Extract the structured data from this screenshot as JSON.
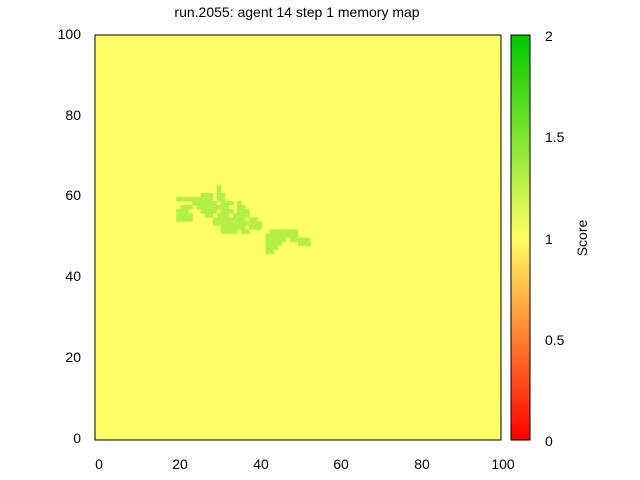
{
  "chart_data": {
    "type": "heatmap",
    "title": "run.2055: agent 14 step 1 memory map",
    "xlim": [
      0,
      100
    ],
    "ylim": [
      0,
      100
    ],
    "x_ticks": [
      "0",
      "20",
      "40",
      "60",
      "80",
      "100"
    ],
    "y_ticks": [
      "0",
      "20",
      "40",
      "60",
      "80",
      "100"
    ],
    "grid": false,
    "background_value": 1,
    "cell_size": 1,
    "cells_value": 1.3,
    "cells": [
      [
        20,
        59
      ],
      [
        21,
        59
      ],
      [
        22,
        59
      ],
      [
        23,
        59
      ],
      [
        24,
        59
      ],
      [
        25,
        59
      ],
      [
        26,
        59
      ],
      [
        27,
        59
      ],
      [
        28,
        59
      ],
      [
        30,
        59
      ],
      [
        31,
        59
      ],
      [
        26,
        60
      ],
      [
        27,
        60
      ],
      [
        28,
        60
      ],
      [
        30,
        60
      ],
      [
        31,
        60
      ],
      [
        30,
        61
      ],
      [
        30,
        62
      ],
      [
        24,
        58
      ],
      [
        25,
        58
      ],
      [
        26,
        58
      ],
      [
        27,
        58
      ],
      [
        28,
        58
      ],
      [
        29,
        58
      ],
      [
        31,
        58
      ],
      [
        32,
        58
      ],
      [
        33,
        58
      ],
      [
        35,
        58
      ],
      [
        21,
        57
      ],
      [
        22,
        57
      ],
      [
        23,
        57
      ],
      [
        25,
        57
      ],
      [
        26,
        57
      ],
      [
        27,
        57
      ],
      [
        28,
        57
      ],
      [
        29,
        57
      ],
      [
        30,
        57
      ],
      [
        31,
        57
      ],
      [
        32,
        57
      ],
      [
        35,
        57
      ],
      [
        36,
        57
      ],
      [
        20,
        56
      ],
      [
        21,
        56
      ],
      [
        22,
        56
      ],
      [
        26,
        56
      ],
      [
        27,
        56
      ],
      [
        28,
        56
      ],
      [
        29,
        56
      ],
      [
        31,
        56
      ],
      [
        32,
        56
      ],
      [
        33,
        56
      ],
      [
        35,
        56
      ],
      [
        36,
        56
      ],
      [
        37,
        56
      ],
      [
        20,
        55
      ],
      [
        21,
        55
      ],
      [
        22,
        55
      ],
      [
        23,
        55
      ],
      [
        27,
        55
      ],
      [
        28,
        55
      ],
      [
        30,
        55
      ],
      [
        31,
        55
      ],
      [
        32,
        55
      ],
      [
        34,
        55
      ],
      [
        35,
        55
      ],
      [
        36,
        55
      ],
      [
        37,
        55
      ],
      [
        20,
        54
      ],
      [
        21,
        54
      ],
      [
        22,
        54
      ],
      [
        23,
        54
      ],
      [
        29,
        54
      ],
      [
        30,
        54
      ],
      [
        31,
        54
      ],
      [
        32,
        54
      ],
      [
        33,
        54
      ],
      [
        34,
        54
      ],
      [
        35,
        54
      ],
      [
        36,
        54
      ],
      [
        38,
        54
      ],
      [
        39,
        54
      ],
      [
        29,
        53
      ],
      [
        30,
        53
      ],
      [
        31,
        53
      ],
      [
        32,
        53
      ],
      [
        33,
        53
      ],
      [
        34,
        53
      ],
      [
        35,
        53
      ],
      [
        36,
        53
      ],
      [
        37,
        53
      ],
      [
        38,
        53
      ],
      [
        39,
        53
      ],
      [
        40,
        53
      ],
      [
        31,
        52
      ],
      [
        32,
        52
      ],
      [
        33,
        52
      ],
      [
        34,
        52
      ],
      [
        35,
        52
      ],
      [
        36,
        52
      ],
      [
        38,
        52
      ],
      [
        39,
        52
      ],
      [
        40,
        52
      ],
      [
        31,
        51
      ],
      [
        32,
        51
      ],
      [
        33,
        51
      ],
      [
        34,
        51
      ],
      [
        36,
        51
      ],
      [
        37,
        51
      ],
      [
        43,
        51
      ],
      [
        44,
        51
      ],
      [
        45,
        51
      ],
      [
        46,
        51
      ],
      [
        47,
        51
      ],
      [
        48,
        51
      ],
      [
        49,
        51
      ],
      [
        42,
        50
      ],
      [
        43,
        50
      ],
      [
        44,
        50
      ],
      [
        45,
        50
      ],
      [
        46,
        50
      ],
      [
        47,
        50
      ],
      [
        48,
        50
      ],
      [
        49,
        50
      ],
      [
        42,
        49
      ],
      [
        43,
        49
      ],
      [
        44,
        49
      ],
      [
        45,
        49
      ],
      [
        46,
        49
      ],
      [
        48,
        49
      ],
      [
        49,
        49
      ],
      [
        50,
        49
      ],
      [
        51,
        49
      ],
      [
        52,
        49
      ],
      [
        42,
        48
      ],
      [
        43,
        48
      ],
      [
        44,
        48
      ],
      [
        45,
        48
      ],
      [
        50,
        48
      ],
      [
        51,
        48
      ],
      [
        52,
        48
      ],
      [
        42,
        47
      ],
      [
        43,
        47
      ],
      [
        44,
        47
      ],
      [
        42,
        46
      ],
      [
        43,
        46
      ]
    ],
    "colorbar": {
      "label": "Score",
      "min": 0,
      "max": 2,
      "ticks": [
        "0",
        "0.5",
        "1",
        "1.5",
        "2"
      ],
      "palette": [
        "#ff0000",
        "#ffff66",
        "#00c800"
      ]
    }
  }
}
